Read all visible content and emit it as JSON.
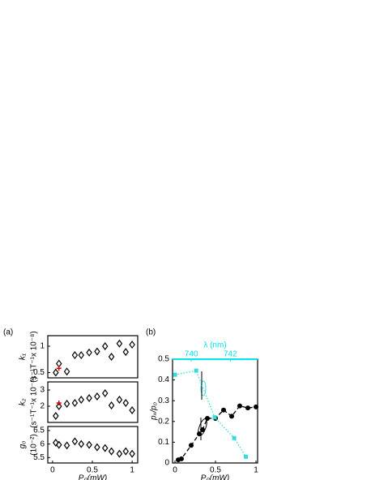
{
  "chart_data": [
    {
      "type": "scatter",
      "label": "(a)",
      "ylabel": [
        "k₁",
        "(s⁻¹T⁻¹x 10⁻⁸)"
      ],
      "xlim": [
        -0.06,
        1.07
      ],
      "ylim": [
        0.4,
        1.2
      ],
      "yticks": [
        0.5,
        1
      ],
      "series": [
        {
          "color": "#000000",
          "marker": "diamond",
          "x": [
            0.04,
            0.08,
            0.18,
            0.28,
            0.36,
            0.46,
            0.56,
            0.66,
            0.74,
            0.84,
            0.92,
            1.0
          ],
          "values": [
            0.5,
            0.67,
            0.52,
            0.83,
            0.83,
            0.88,
            0.9,
            1.0,
            0.8,
            1.05,
            0.89,
            1.03
          ]
        },
        {
          "color": "#dd0000",
          "marker": "plus",
          "x": [
            0.08
          ],
          "values": [
            0.58
          ]
        }
      ]
    },
    {
      "type": "scatter",
      "ylabel": [
        "k₂",
        "(s⁻¹T⁻¹x 10⁻⁸)"
      ],
      "xlim": [
        -0.06,
        1.07
      ],
      "ylim": [
        1.0,
        3.5
      ],
      "yticks": [
        2,
        3
      ],
      "series": [
        {
          "color": "#000000",
          "marker": "diamond",
          "x": [
            0.04,
            0.08,
            0.18,
            0.28,
            0.36,
            0.46,
            0.56,
            0.66,
            0.74,
            0.84,
            0.92,
            1.0
          ],
          "values": [
            1.4,
            2.0,
            2.15,
            2.2,
            2.4,
            2.5,
            2.6,
            2.8,
            2.05,
            2.4,
            2.2,
            1.75
          ]
        },
        {
          "color": "#dd0000",
          "marker": "plus",
          "x": [
            0.08
          ],
          "values": [
            2.2
          ]
        }
      ]
    },
    {
      "type": "scatter",
      "ylabel": [
        "g₀",
        "(10⁻²)"
      ],
      "xlabel": "Pₚ(mW)",
      "xlim": [
        -0.06,
        1.07
      ],
      "xticks": [
        0,
        0.5,
        1
      ],
      "ylim": [
        5.3,
        6.65
      ],
      "yticks": [
        5.5,
        6,
        6.5
      ],
      "series": [
        {
          "color": "#000000",
          "marker": "diamond",
          "x": [
            0.04,
            0.08,
            0.18,
            0.28,
            0.36,
            0.46,
            0.56,
            0.66,
            0.74,
            0.84,
            0.92,
            1.0
          ],
          "values": [
            6.05,
            5.97,
            5.95,
            6.1,
            6.0,
            5.97,
            5.88,
            5.85,
            5.73,
            5.64,
            5.73,
            5.64
          ]
        }
      ]
    },
    {
      "type": "scatter",
      "label": "(b)",
      "ylabel": [
        "pₓ/p₀"
      ],
      "xlabel": "Pₚ(mW)",
      "xlim": [
        -0.03,
        1.02
      ],
      "xticks": [
        0,
        0.5,
        1
      ],
      "ylim": [
        0,
        0.5
      ],
      "yticks": [
        0,
        0.1,
        0.2,
        0.3,
        0.4,
        0.5
      ],
      "x2lim": [
        739.04,
        743.4
      ],
      "x2ticks": [
        740,
        742
      ],
      "x2label": "λ (nm)",
      "x2color": "#00e5e5",
      "series": [
        {
          "color": "#000000",
          "marker": "circle",
          "line": "dashed",
          "x": [
            0.04,
            0.08,
            0.2,
            0.3,
            0.34,
            0.4,
            0.5,
            0.6,
            0.7,
            0.8,
            0.9,
            1.0
          ],
          "values": [
            0.015,
            0.02,
            0.085,
            0.14,
            0.16,
            0.215,
            0.215,
            0.255,
            0.225,
            0.275,
            0.265,
            0.27
          ]
        },
        {
          "color": "#33dddd",
          "marker": "square",
          "line": "dotted",
          "xaxis": "x2",
          "x": [
            739.17,
            740.25,
            741.2,
            742.2,
            742.8
          ],
          "values": [
            0.425,
            0.445,
            0.22,
            0.12,
            0.03
          ]
        }
      ]
    }
  ]
}
